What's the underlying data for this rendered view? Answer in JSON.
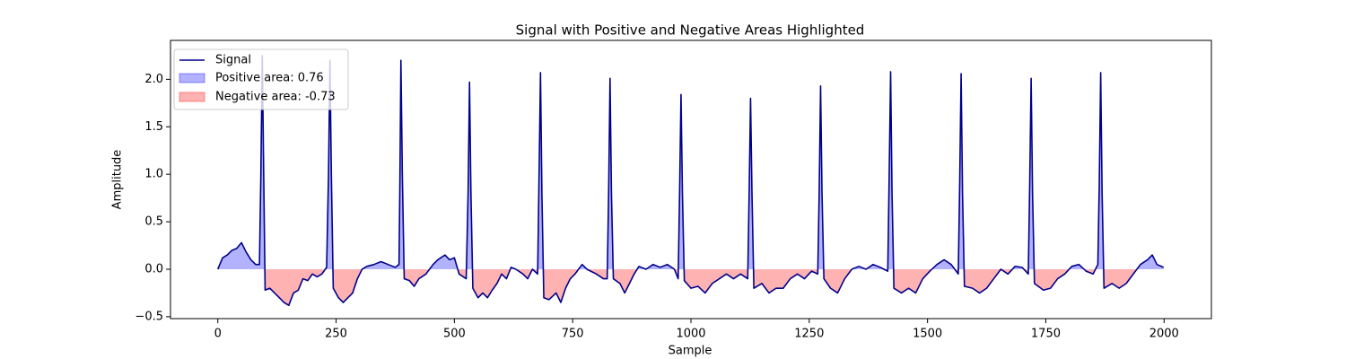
{
  "chart_data": {
    "type": "line",
    "title": "Signal with Positive and Negative Areas Highlighted",
    "x_label": "Sample",
    "y_label": "Amplitude",
    "xlim": [
      -100,
      2100
    ],
    "ylim": [
      -0.52,
      2.41
    ],
    "xticks": [
      0,
      250,
      500,
      750,
      1000,
      1250,
      1500,
      1750,
      2000
    ],
    "yticks": [
      {
        "value": -0.5,
        "label": "−0.5"
      },
      {
        "value": 0,
        "label": "0.0"
      },
      {
        "value": 0.5,
        "label": "0.5"
      },
      {
        "value": 1,
        "label": "1.0"
      },
      {
        "value": 1.5,
        "label": "1.5"
      },
      {
        "value": 2,
        "label": "2.0"
      }
    ],
    "legend": "upper left",
    "positive_area": {
      "name": "Positive area: 0.76",
      "color": "#0000ff",
      "alpha": 0.3
    },
    "negative_area": {
      "name": "Negative area: -0.73",
      "color": "#ff0000",
      "alpha": 0.3
    },
    "x": [
      0,
      10,
      20,
      30,
      40,
      50,
      60,
      70,
      80,
      88,
      91,
      94,
      97,
      100,
      110,
      120,
      130,
      140,
      150,
      160,
      170,
      180,
      190,
      200,
      210,
      220,
      230,
      234,
      237,
      240,
      244,
      255,
      265,
      275,
      285,
      295,
      305,
      315,
      330,
      345,
      360,
      375,
      383,
      385,
      387,
      390,
      394,
      405,
      415,
      425,
      440,
      455,
      465,
      480,
      490,
      500,
      510,
      525,
      529,
      532,
      535,
      539,
      550,
      560,
      570,
      580,
      590,
      600,
      610,
      620,
      630,
      645,
      655,
      665,
      676,
      679,
      682,
      685,
      689,
      700,
      715,
      725,
      735,
      745,
      755,
      770,
      780,
      800,
      815,
      823,
      826,
      829,
      832,
      836,
      850,
      860,
      870,
      880,
      890,
      905,
      920,
      935,
      950,
      965,
      973,
      976,
      979,
      982,
      986,
      1000,
      1015,
      1030,
      1045,
      1060,
      1075,
      1090,
      1105,
      1120,
      1123,
      1126,
      1129,
      1133,
      1150,
      1165,
      1180,
      1195,
      1210,
      1225,
      1240,
      1255,
      1268,
      1271,
      1274,
      1277,
      1281,
      1295,
      1310,
      1325,
      1340,
      1355,
      1370,
      1385,
      1400,
      1416,
      1419,
      1422,
      1425,
      1429,
      1445,
      1460,
      1475,
      1490,
      1505,
      1520,
      1535,
      1550,
      1565,
      1568,
      1571,
      1574,
      1578,
      1595,
      1610,
      1625,
      1640,
      1655,
      1670,
      1685,
      1700,
      1713,
      1716,
      1719,
      1722,
      1726,
      1745,
      1760,
      1775,
      1790,
      1805,
      1820,
      1835,
      1850,
      1860,
      1863,
      1866,
      1869,
      1873,
      1890,
      1905,
      1920,
      1935,
      1950,
      1965,
      1975,
      1985,
      1999
    ],
    "series": [
      {
        "name": "Signal",
        "color": "#00008b",
        "values": [
          0,
          0.12,
          0.15,
          0.2,
          0.22,
          0.28,
          0.18,
          0.1,
          0.05,
          0.05,
          1.0,
          2.25,
          1.0,
          -0.22,
          -0.2,
          -0.25,
          -0.3,
          -0.35,
          -0.38,
          -0.25,
          -0.22,
          -0.1,
          -0.12,
          -0.05,
          -0.08,
          -0.05,
          0.02,
          1.0,
          2.2,
          1.0,
          -0.2,
          -0.3,
          -0.35,
          -0.3,
          -0.25,
          -0.1,
          0.0,
          0.03,
          0.05,
          0.08,
          0.05,
          0.02,
          0.05,
          1.0,
          2.2,
          1.0,
          -0.1,
          -0.12,
          -0.18,
          -0.1,
          -0.05,
          0.05,
          0.1,
          0.15,
          0.1,
          0.12,
          -0.05,
          -0.1,
          0.8,
          1.97,
          0.8,
          -0.2,
          -0.3,
          -0.25,
          -0.3,
          -0.22,
          -0.15,
          -0.05,
          -0.1,
          0.02,
          0.0,
          -0.05,
          -0.1,
          0.0,
          -0.05,
          1.0,
          2.07,
          0.8,
          -0.3,
          -0.32,
          -0.25,
          -0.35,
          -0.2,
          -0.1,
          -0.05,
          0.05,
          0.0,
          -0.05,
          -0.1,
          -0.1,
          0.8,
          2.01,
          0.8,
          -0.1,
          -0.15,
          -0.25,
          -0.15,
          -0.05,
          0.03,
          0.0,
          0.05,
          0.02,
          0.05,
          0.0,
          -0.1,
          0.8,
          1.84,
          0.8,
          -0.12,
          -0.2,
          -0.18,
          -0.25,
          -0.15,
          -0.1,
          -0.05,
          -0.1,
          -0.05,
          -0.1,
          0.8,
          1.8,
          0.8,
          -0.2,
          -0.15,
          -0.25,
          -0.2,
          -0.2,
          -0.1,
          -0.05,
          -0.1,
          -0.02,
          -0.05,
          0.8,
          1.93,
          0.8,
          -0.1,
          -0.2,
          -0.25,
          -0.1,
          0.0,
          0.03,
          0.0,
          0.05,
          0.02,
          -0.02,
          1.0,
          2.08,
          0.8,
          -0.2,
          -0.25,
          -0.2,
          -0.25,
          -0.1,
          -0.02,
          0.05,
          0.1,
          0.05,
          -0.05,
          0.9,
          2.06,
          0.8,
          -0.18,
          -0.2,
          -0.25,
          -0.2,
          -0.1,
          0.0,
          -0.05,
          0.03,
          0.02,
          -0.05,
          0.9,
          2.01,
          0.8,
          -0.15,
          -0.22,
          -0.2,
          -0.1,
          -0.05,
          0.03,
          0.05,
          -0.02,
          -0.05,
          0.05,
          0.9,
          2.07,
          0.8,
          -0.2,
          -0.15,
          -0.2,
          -0.15,
          -0.05,
          0.05,
          0.1,
          0.15,
          0.05,
          0.02
        ]
      }
    ]
  }
}
